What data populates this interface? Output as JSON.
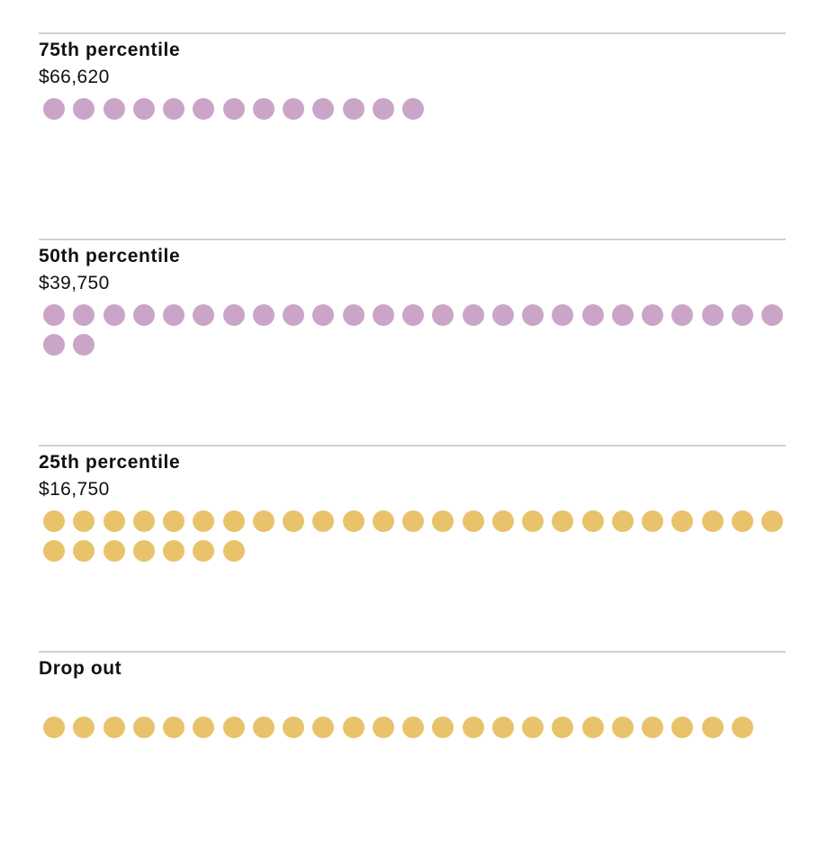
{
  "chart_data": {
    "type": "dot",
    "colors": {
      "high": "#cba5c8",
      "low": "#e8c36b"
    },
    "groups": [
      {
        "label": "75th percentile",
        "value": "$66,620",
        "count": 13,
        "color": "#cba5c8"
      },
      {
        "label": "50th percentile",
        "value": "$39,750",
        "count": 27,
        "color": "#cba5c8"
      },
      {
        "label": "25th percentile",
        "value": "$16,750",
        "count": 32,
        "color": "#e8c36b"
      },
      {
        "label": "Drop out",
        "value": "",
        "count": 24,
        "color": "#e8c36b"
      }
    ]
  }
}
